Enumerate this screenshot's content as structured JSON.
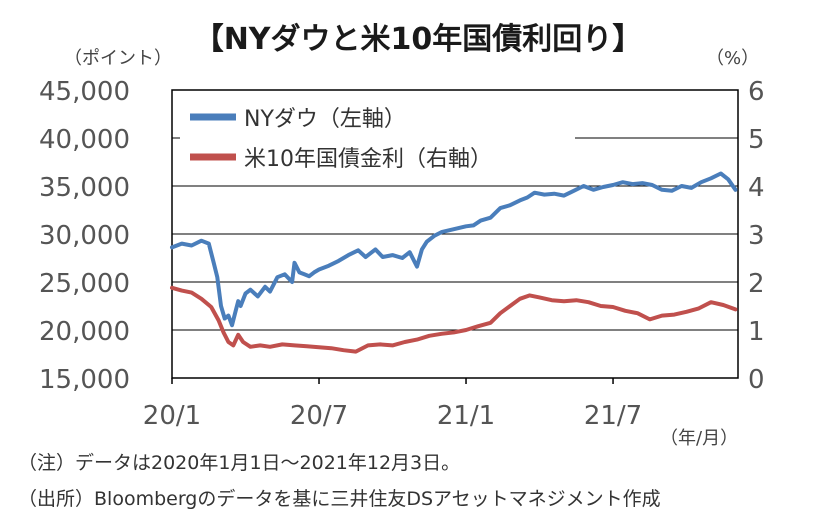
{
  "chart_data": {
    "type": "line",
    "title": "【NYダウと米10年国債利回り】",
    "left_axis_unit": "（ポイント）",
    "right_axis_unit": "（%）",
    "x_unit": "（年/月）",
    "x_tick_labels": [
      "20/1",
      "20/7",
      "21/1",
      "21/7"
    ],
    "left_axis": {
      "min": 15000,
      "max": 45000,
      "ticks": [
        "15,000",
        "20,000",
        "25,000",
        "30,000",
        "35,000",
        "40,000",
        "45,000"
      ]
    },
    "right_axis": {
      "min": 0,
      "max": 6,
      "ticks": [
        "0",
        "1",
        "2",
        "3",
        "4",
        "5",
        "6"
      ]
    },
    "x_range": [
      0,
      23.1
    ],
    "x_tick_positions": [
      0,
      6,
      12,
      18
    ],
    "grid": true,
    "legend_position": "top-left",
    "series": [
      {
        "name": "NYダウ（左軸）",
        "axis": "left",
        "color": "#4a7ebb",
        "x": [
          0,
          0.4,
          0.8,
          1.2,
          1.5,
          1.7,
          1.85,
          2.0,
          2.15,
          2.3,
          2.45,
          2.6,
          2.7,
          2.8,
          3.0,
          3.2,
          3.5,
          3.8,
          4.0,
          4.3,
          4.6,
          4.9,
          5.0,
          5.2,
          5.4,
          5.6,
          5.8,
          6.0,
          6.4,
          6.8,
          7.2,
          7.6,
          7.9,
          8.3,
          8.6,
          9.0,
          9.4,
          9.7,
          10.0,
          10.2,
          10.4,
          10.7,
          11.0,
          11.5,
          12.0,
          12.3,
          12.6,
          13.0,
          13.4,
          13.8,
          14.2,
          14.5,
          14.8,
          15.2,
          15.6,
          16.0,
          16.4,
          16.8,
          17.2,
          17.6,
          18.0,
          18.4,
          18.8,
          19.2,
          19.6,
          20.0,
          20.4,
          20.8,
          21.2,
          21.6,
          22.0,
          22.4,
          22.7,
          23.0
        ],
        "values": [
          28600,
          29000,
          28800,
          29300,
          29000,
          27000,
          25500,
          22500,
          21200,
          21500,
          20500,
          22000,
          23000,
          22500,
          23800,
          24200,
          23500,
          24500,
          24000,
          25500,
          25800,
          25000,
          27000,
          26000,
          25800,
          25600,
          26000,
          26300,
          26700,
          27200,
          27800,
          28300,
          27600,
          28400,
          27600,
          27800,
          27500,
          28100,
          26600,
          28400,
          29200,
          29800,
          30200,
          30500,
          30800,
          30900,
          31400,
          31700,
          32700,
          33000,
          33500,
          33800,
          34300,
          34100,
          34200,
          34000,
          34500,
          35000,
          34600,
          34900,
          35100,
          35400,
          35200,
          35300,
          35100,
          34600,
          34500,
          35000,
          34800,
          35400,
          35800,
          36300,
          35700,
          34600
        ]
      },
      {
        "name": "米10年国債金利（右軸）",
        "axis": "right",
        "color": "#c0504d",
        "x": [
          0,
          0.4,
          0.8,
          1.2,
          1.6,
          1.9,
          2.1,
          2.3,
          2.5,
          2.7,
          2.9,
          3.2,
          3.6,
          4.0,
          4.5,
          5.0,
          5.5,
          6.0,
          6.5,
          7.0,
          7.5,
          8.0,
          8.5,
          9.0,
          9.5,
          10.0,
          10.5,
          11.0,
          11.5,
          12.0,
          12.5,
          13.0,
          13.4,
          13.8,
          14.2,
          14.6,
          15.0,
          15.5,
          16.0,
          16.5,
          17.0,
          17.5,
          18.0,
          18.5,
          19.0,
          19.5,
          20.0,
          20.5,
          21.0,
          21.5,
          22.0,
          22.5,
          23.0
        ],
        "values": [
          1.88,
          1.82,
          1.78,
          1.65,
          1.48,
          1.2,
          0.95,
          0.75,
          0.68,
          0.9,
          0.75,
          0.65,
          0.68,
          0.65,
          0.7,
          0.68,
          0.66,
          0.64,
          0.62,
          0.58,
          0.55,
          0.68,
          0.7,
          0.68,
          0.75,
          0.8,
          0.88,
          0.92,
          0.95,
          1.0,
          1.08,
          1.15,
          1.35,
          1.5,
          1.65,
          1.72,
          1.68,
          1.62,
          1.6,
          1.62,
          1.58,
          1.5,
          1.48,
          1.4,
          1.35,
          1.22,
          1.3,
          1.32,
          1.38,
          1.45,
          1.58,
          1.52,
          1.43
        ]
      }
    ]
  },
  "notes": [
    "（注）データは2020年1月1日～2021年12月3日。",
    "（出所）Bloombergのデータを基に三井住友DSアセットマネジメント作成"
  ]
}
